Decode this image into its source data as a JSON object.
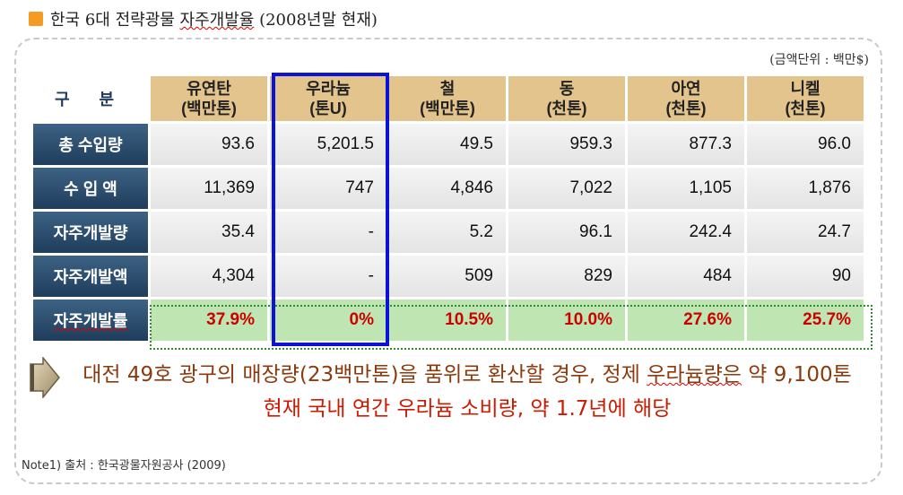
{
  "title": {
    "prefix": "한국 6대 전략광물 ",
    "underlined": "자주개발율",
    "suffix": " (2008년말 현재)",
    "marker_color": "#f59a23"
  },
  "unit_note": "(금액단위 : 백만$)",
  "table": {
    "corner_label": "구 분",
    "columns": [
      {
        "name": "유연탄",
        "unit": "(백만톤)"
      },
      {
        "name": "우라늄",
        "unit": "(톤U)"
      },
      {
        "name": "철",
        "unit": "(백만톤)"
      },
      {
        "name": "동",
        "unit": "(천톤)"
      },
      {
        "name": "아연",
        "unit": "(천톤)"
      },
      {
        "name": "니켈",
        "unit": "(천톤)"
      }
    ],
    "rows": [
      {
        "label": "총 수입량",
        "values": [
          "93.6",
          "5,201.5",
          "49.5",
          "959.3",
          "877.3",
          "96.0"
        ]
      },
      {
        "label": "수 입 액",
        "values": [
          "11,369",
          "747",
          "4,846",
          "7,022",
          "1,105",
          "1,876"
        ]
      },
      {
        "label": "자주개발량",
        "values": [
          "35.4",
          "-",
          "5.2",
          "96.1",
          "242.4",
          "24.7"
        ]
      },
      {
        "label": "자주개발액",
        "values": [
          "4,304",
          "-",
          "509",
          "829",
          "484",
          "90"
        ]
      },
      {
        "label": "자주개발률",
        "values": [
          "37.9%",
          "0%",
          "10.5%",
          "10.0%",
          "27.6%",
          "25.7%"
        ]
      }
    ],
    "header_color": "#e2c48c",
    "row_label_color": "#2e5170",
    "highlight_row_color": "#bfe6b2",
    "highlight_text_color": "#cc0000",
    "highlight_box_color": "#0b14d6"
  },
  "message": {
    "line1_prefix": "대전 49호 광구의 매장량(23백만톤)을 품위로 환산할 경우, 정제 ",
    "line1_underlined": "우라늄량은",
    "line1_suffix": " 약 9,100톤",
    "line2": "현재 국내 연간 우라늄 소비량, 약 1.7년에 해당"
  },
  "note": "Note1) 출처 : 한국광물자원공사 (2009)"
}
